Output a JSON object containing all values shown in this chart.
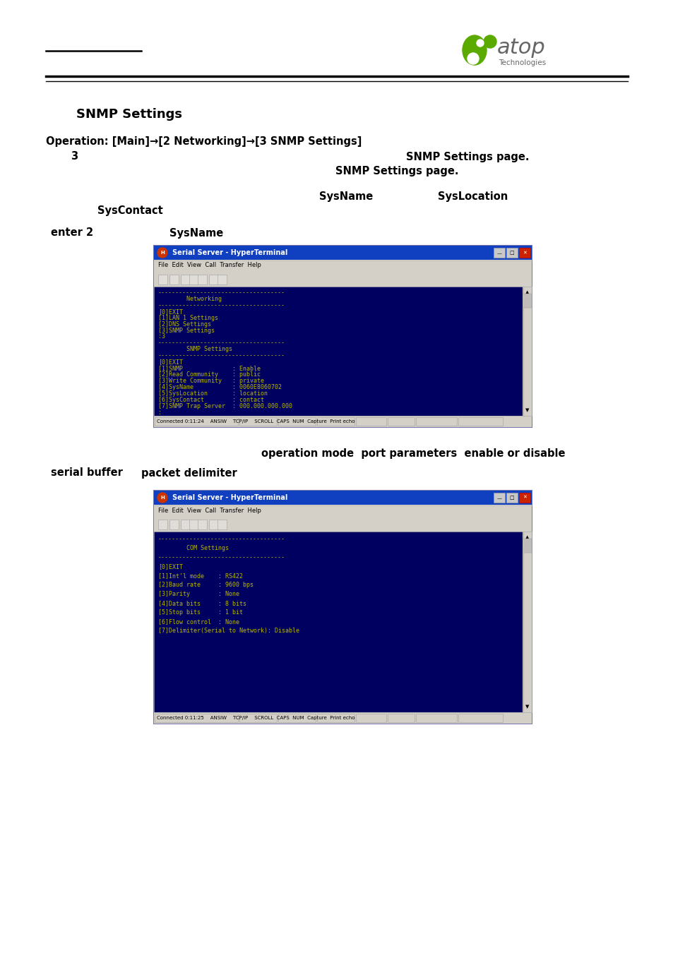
{
  "bg_color": "#ffffff",
  "title": "SNMP Settings",
  "operation_line": "Operation: [Main]→[2 Networking]→[3 SNMP Settings]",
  "text_block1_left": "3",
  "text_block1_right1": "SNMP Settings page.",
  "text_block1_right2": "SNMP Settings page.",
  "text_sysname": "SysName",
  "text_syslocation": "SysLocation",
  "text_syscontact": "SysContact",
  "text_enter2": "enter 2",
  "text_sysname2": "SysName",
  "terminal1_title": "Serial Server - HyperTerminal",
  "terminal1_menu": "File  Edit  View  Call  Transfer  Help",
  "terminal1_content": [
    "------------------------------------",
    "        Networking",
    "------------------------------------",
    "[0]EXIT",
    "[1]LAN 1 Settings",
    "[2]DNS Settings",
    "[3]SNMP Settings",
    ":3",
    "------------------------------------",
    "        SNMP Settings",
    "------------------------------------",
    "[0]EXIT",
    "[1]SNMP              : Enable",
    "[2]Read Community    : public",
    "[3]Write Community   : private",
    "[4]SysName           : 0060E8060702",
    "[5]SysLocation       : location",
    "[6]SysContact        : contact",
    "[7]SNMP Trap Server  : 000.000.000.000",
    ":"
  ],
  "statusbar1": "Connected 0:11:24    ANSIW    TCP/IP    SCROLL  CAPS  NUM  Capture  Print echo",
  "section2_right": "operation mode  port parameters  enable or disable",
  "section2_left1": "serial buffer",
  "section2_left2": "packet delimiter",
  "terminal2_title": "Serial Server - HyperTerminal",
  "terminal2_menu": "File  Edit  View  Call  Transfer  Help",
  "terminal2_content": [
    "------------------------------------",
    "        COM Settings",
    "------------------------------------",
    "[0]EXIT",
    "[1]Int'l mode    : RS422",
    "[2]Baud rate     : 9600 bps",
    "[3]Parity        : None",
    "[4]Data bits     : 8 bits",
    "[5]Stop bits     : 1 bit",
    "[6]Flow control  : None",
    "[7]Delimiter(Serial to Network): Disable"
  ],
  "statusbar2": "Connected 0:11:25    ANSIW    TCP/IP    SCROLL  CAPS  NUM  Capture  Print echo",
  "logo_green": "#5aaa00",
  "logo_gray": "#666666",
  "term_bg": "#000060",
  "term_text": "#b8b800",
  "titlebar_color": "#1040c0",
  "win_bg": "#d4d0c8"
}
